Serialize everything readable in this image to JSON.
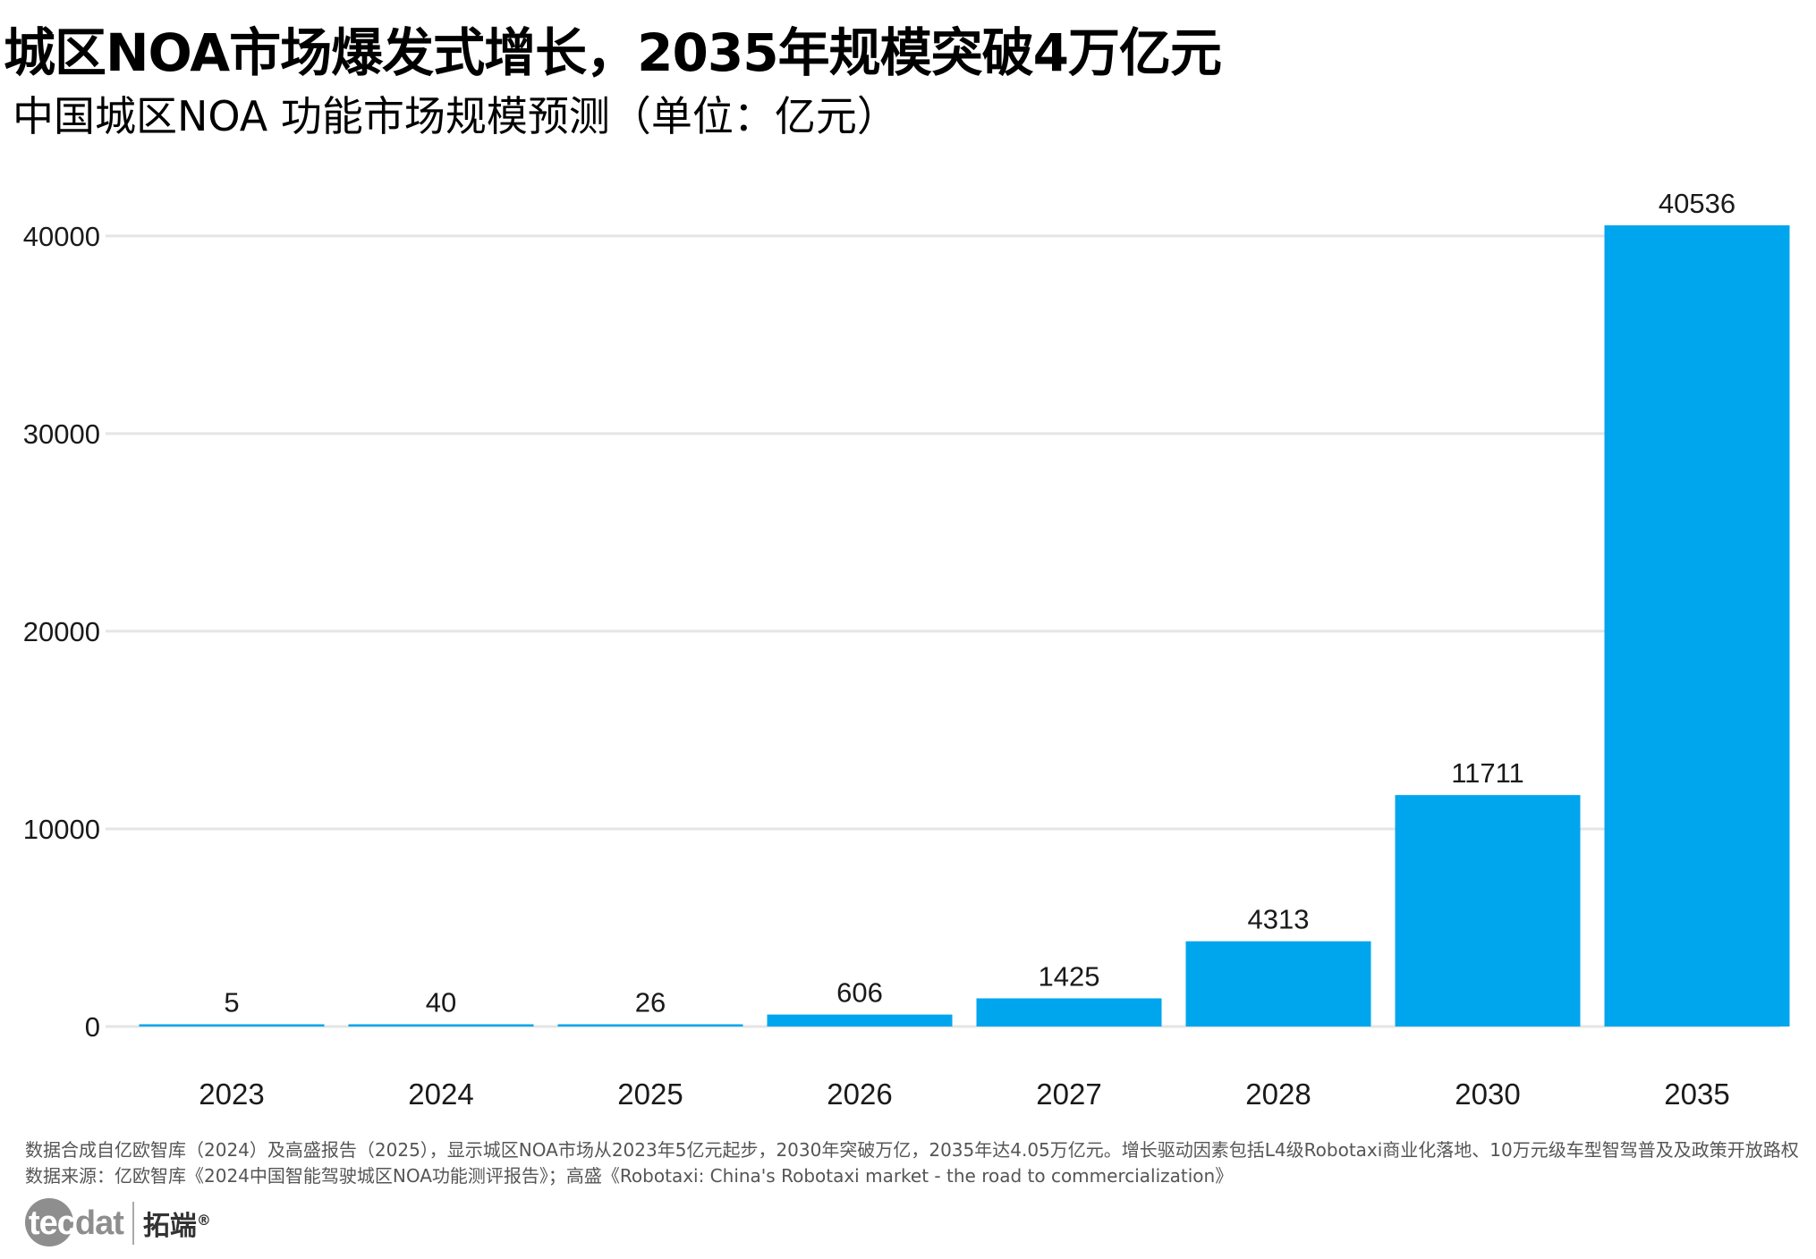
{
  "title": "城区NOA市场爆发式增长，2035年规模突破4万亿元",
  "subtitle": "中国城区NOA 功能市场规模预测（单位：亿元）",
  "chart_data": {
    "type": "bar",
    "title": "城区NOA市场爆发式增长，2035年规模突破4万亿元",
    "subtitle": "中国城区NOA 功能市场规模预测（单位：亿元）",
    "categories": [
      "2023",
      "2024",
      "2025",
      "2026",
      "2027",
      "2028",
      "2030",
      "2035"
    ],
    "values": [
      5,
      40,
      26,
      606,
      1425,
      4313,
      11711,
      40536
    ],
    "value_labels": [
      "5",
      "40",
      "26",
      "606",
      "1425",
      "4313",
      "11711",
      "40536"
    ],
    "yticks": [
      0,
      10000,
      20000,
      30000,
      40000
    ],
    "ytick_labels": [
      "0",
      "10000",
      "20000",
      "30000",
      "40000"
    ],
    "ylim": [
      0,
      40536
    ],
    "xlabel": "",
    "ylabel": "",
    "grid": true,
    "bar_color": "#00A6ED",
    "grid_color": "#E5E5E5"
  },
  "notes": {
    "line1": "数据合成自亿欧智库（2024）及高盛报告（2025），显示城区NOA市场从2023年5亿元起步，2030年突破万亿，2035年达4.05万亿元。增长驱动因素包括L4级Robotaxi商业化落地、10万元级车型智驾普及及政策开放路权",
    "line2": "数据来源：亿欧智库《2024中国智能驾驶城区NOA功能测评报告》；高盛《Robotaxi: China's Robotaxi market - the road to commercialization》"
  },
  "logo": {
    "brand_part1": "tec",
    "brand_part2": "dat",
    "cn": "拓端",
    "reg": "®"
  }
}
